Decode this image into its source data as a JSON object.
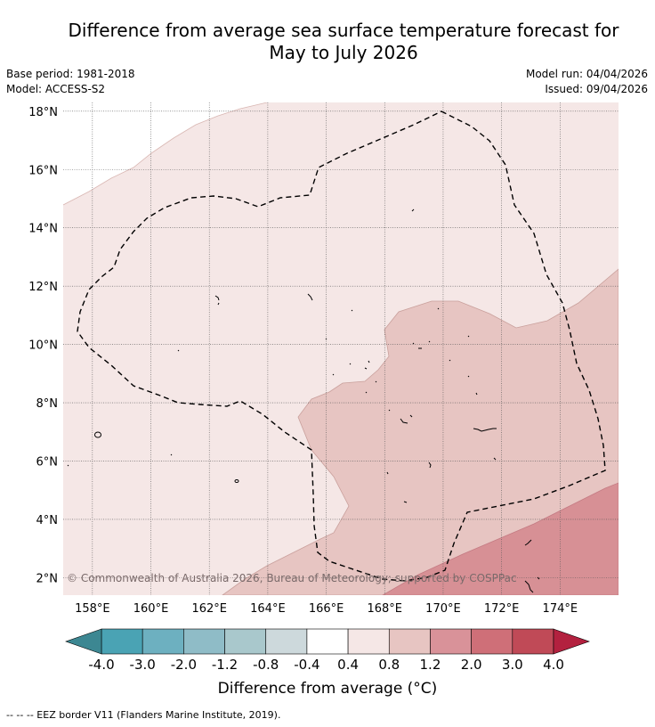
{
  "title": {
    "line1": "Difference from average sea surface temperature forecast for",
    "line2": "May to July 2026"
  },
  "info_left": {
    "base_period": "Base period: 1981-2018",
    "model": "Model: ACCESS-S2"
  },
  "info_right": {
    "model_run": "Model run: 04/04/2026",
    "issued": "Issued: 09/04/2026"
  },
  "map": {
    "lon_range": [
      157,
      176
    ],
    "lat_range": [
      1.4,
      18.3
    ],
    "lat_ticks": [
      {
        "value": 18,
        "label": "18°N"
      },
      {
        "value": 16,
        "label": "16°N"
      },
      {
        "value": 14,
        "label": "14°N"
      },
      {
        "value": 12,
        "label": "12°N"
      },
      {
        "value": 10,
        "label": "10°N"
      },
      {
        "value": 8,
        "label": "8°N"
      },
      {
        "value": 6,
        "label": "6°N"
      },
      {
        "value": 4,
        "label": "4°N"
      },
      {
        "value": 2,
        "label": "2°N"
      }
    ],
    "lon_ticks": [
      {
        "value": 158,
        "label": "158°E"
      },
      {
        "value": 160,
        "label": "160°E"
      },
      {
        "value": 162,
        "label": "162°E"
      },
      {
        "value": 164,
        "label": "164°E"
      },
      {
        "value": 166,
        "label": "166°E"
      },
      {
        "value": 168,
        "label": "168°E"
      },
      {
        "value": 170,
        "label": "170°E"
      },
      {
        "value": 172,
        "label": "172°E"
      },
      {
        "value": 174,
        "label": "174°E"
      }
    ],
    "copyright": "© Commonwealth of Australia 2026, Bureau of Meteorology; supported by COSPPac"
  },
  "colorbar": {
    "tick_labels": [
      "-4.0",
      "-3.0",
      "-2.0",
      "-1.2",
      "-0.8",
      "-0.4",
      "0.4",
      "0.8",
      "1.2",
      "2.0",
      "3.0",
      "4.0"
    ],
    "colors": [
      "#4aa3b4",
      "#6db0c0",
      "#8fbcc7",
      "#a9c8cc",
      "#cdd9dc",
      "#ffffff",
      "#f5e7e6",
      "#e7c5c2",
      "#d99299",
      "#cf6f78",
      "#c04a57"
    ],
    "under_color": "#3c8792",
    "over_color": "#b3213f",
    "label": "Difference from average (°C)"
  },
  "legend_footnote": "-- -- -- EEZ border V11 (Flanders Marine Institute, 2019).",
  "colors": {
    "anomaly_0_4_to_0_8": "#f5e7e6",
    "anomaly_0_8_to_1_2": "#e7c5c2",
    "anomaly_1_2_to_2_0": "#d79095",
    "contour_line": "#c9a09c"
  }
}
